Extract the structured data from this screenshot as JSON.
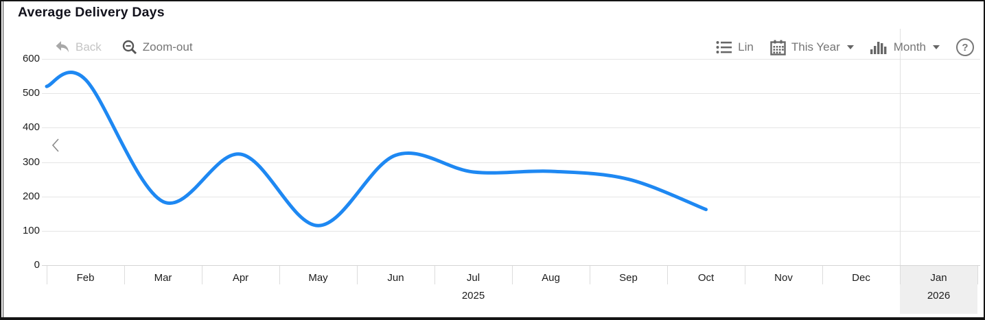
{
  "title": "Average Delivery Days",
  "toolbar": {
    "back_label": "Back",
    "zoom_out_label": "Zoom-out",
    "lin_label": "Lin",
    "range_label": "This Year",
    "granularity_label": "Month",
    "help_label": "?"
  },
  "colors": {
    "line": "#1e88f2",
    "grid": "#e5e5e5",
    "axis_text": "#1c1c1c",
    "toolbar_text": "#757575",
    "toolbar_disabled": "#c4c4c4",
    "highlight_band": "#efefef"
  },
  "chart_data": {
    "type": "line",
    "title": "Average Delivery Days",
    "categories": [
      "Feb",
      "Mar",
      "Apr",
      "May",
      "Jun",
      "Jul",
      "Aug",
      "Sep",
      "Oct",
      "Nov",
      "Dec",
      "Jan"
    ],
    "category_years": [
      "",
      "",
      "",
      "",
      "",
      "2025",
      "",
      "",
      "",
      "",
      "",
      "2026"
    ],
    "series": [
      {
        "name": "Average Delivery Days",
        "values": [
          540,
          185,
          323,
          115,
          320,
          271,
          273,
          250,
          162,
          null,
          null,
          null
        ]
      }
    ],
    "edge_start_value": 520,
    "ylim": [
      0,
      600
    ],
    "yticks": [
      0,
      100,
      200,
      300,
      400,
      500,
      600
    ],
    "xlabel": "",
    "ylabel": "",
    "grid": true,
    "legend": "none",
    "highlighted_band_index": 11,
    "future_divider_band_index": 11
  }
}
